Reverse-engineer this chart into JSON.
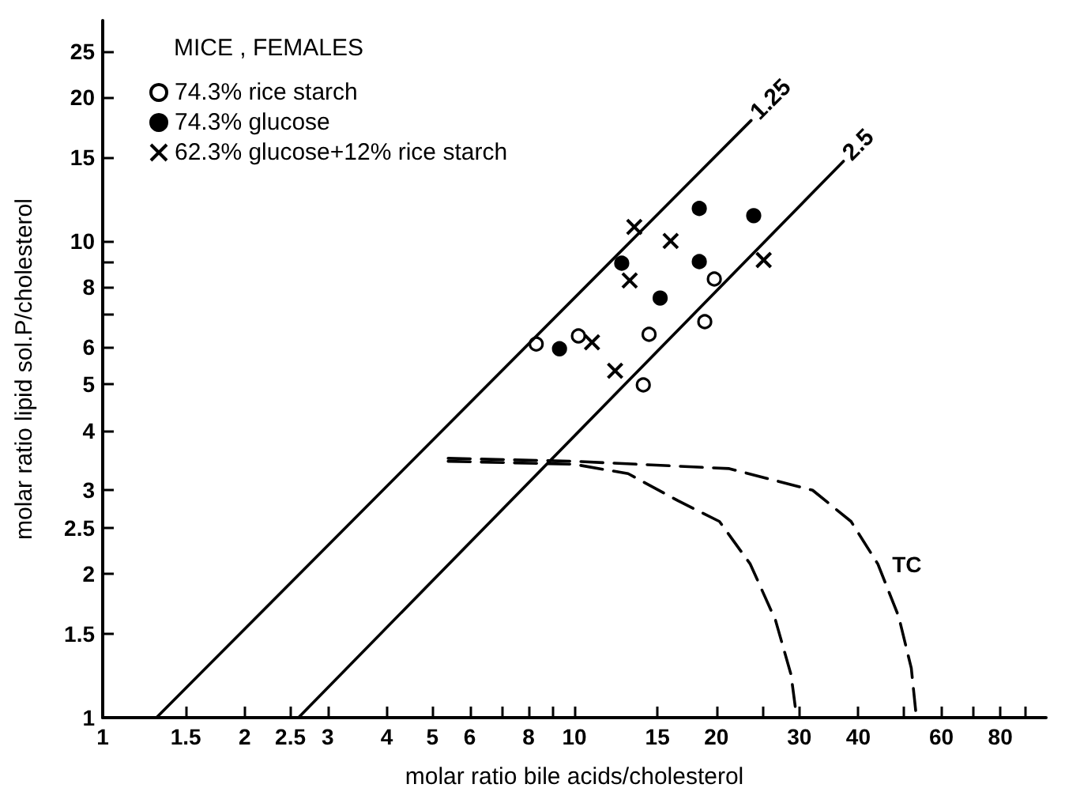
{
  "chart_data": {
    "type": "scatter",
    "xlabel": "molar ratio bile acids/cholesterol",
    "ylabel": "molar ratio lipid sol.P/cholesterol",
    "legend_title": "MICE , FEMALES",
    "log": "xy",
    "grid": false,
    "legend": "top left",
    "xlim": [
      1,
      100
    ],
    "ylim": [
      1,
      29
    ],
    "xticks": [
      1,
      1.5,
      2,
      2.5,
      3,
      4,
      5,
      6,
      {
        "value": 7,
        "label": null
      },
      8,
      {
        "value": 9,
        "label": null
      },
      10,
      15,
      20,
      {
        "value": 25,
        "label": null
      },
      30,
      40,
      {
        "value": 50,
        "label": null
      },
      60,
      {
        "value": 70,
        "label": null
      },
      80,
      {
        "value": 90,
        "label": null
      }
    ],
    "yticks": [
      1,
      1.5,
      2,
      2.5,
      3,
      4,
      5,
      6,
      {
        "value": 7,
        "label": null
      },
      8,
      {
        "value": 9,
        "label": null
      },
      10,
      15,
      20,
      25
    ],
    "series": [
      {
        "name": "74.3% rice starch",
        "color": "#ffffff",
        "marker": "circle",
        "x": [
          8.3,
          10.2,
          14.4,
          14.0,
          18.9,
          19.8
        ],
        "values": [
          6.08,
          6.32,
          6.37,
          4.99,
          6.77,
          8.32
        ]
      },
      {
        "name": "74.3% glucose",
        "color": "#000000",
        "marker": "circle",
        "x": [
          9.3,
          12.6,
          15.2,
          18.4,
          18.4,
          24.0
        ],
        "values": [
          5.94,
          8.98,
          7.59,
          11.7,
          9.05,
          11.3
        ]
      },
      {
        "name": "62.3% glucose+12% rice starch",
        "color": "#000000",
        "marker": "cross",
        "x": [
          10.9,
          13.4,
          16.0,
          13.1,
          12.2,
          25.2
        ],
        "values": [
          6.13,
          10.7,
          10.0,
          8.26,
          5.34,
          9.12
        ]
      },
      {
        "name": "1.25",
        "type": "line",
        "color": "#000000",
        "marker": "none",
        "line_style": "solid",
        "x": [
          1.3,
          23.7
        ],
        "values": [
          1.0,
          17.9
        ]
      },
      {
        "name": "2.5",
        "type": "line",
        "color": "#000000",
        "marker": "none",
        "line_style": "solid",
        "x": [
          2.6,
          37.2
        ],
        "values": [
          1.0,
          14.7
        ]
      },
      {
        "type": "line",
        "color": "#000000",
        "marker": "none",
        "line_style": "dashed",
        "x": [
          5.4,
          10,
          13,
          16.6,
          20.3,
          23.6,
          26.7,
          28.8,
          29.6
        ],
        "values": [
          3.45,
          3.4,
          3.25,
          2.85,
          2.58,
          2.1,
          1.6,
          1.23,
          1.0
        ]
      },
      {
        "name": "TC",
        "type": "line",
        "color": "#000000",
        "marker": "none",
        "line_style": "dashed",
        "x": [
          5.4,
          10,
          21.3,
          32,
          38.6,
          44,
          48.7,
          51.8,
          53
        ],
        "values": [
          3.5,
          3.45,
          3.33,
          3.0,
          2.58,
          2.1,
          1.63,
          1.27,
          1.02
        ]
      }
    ]
  }
}
